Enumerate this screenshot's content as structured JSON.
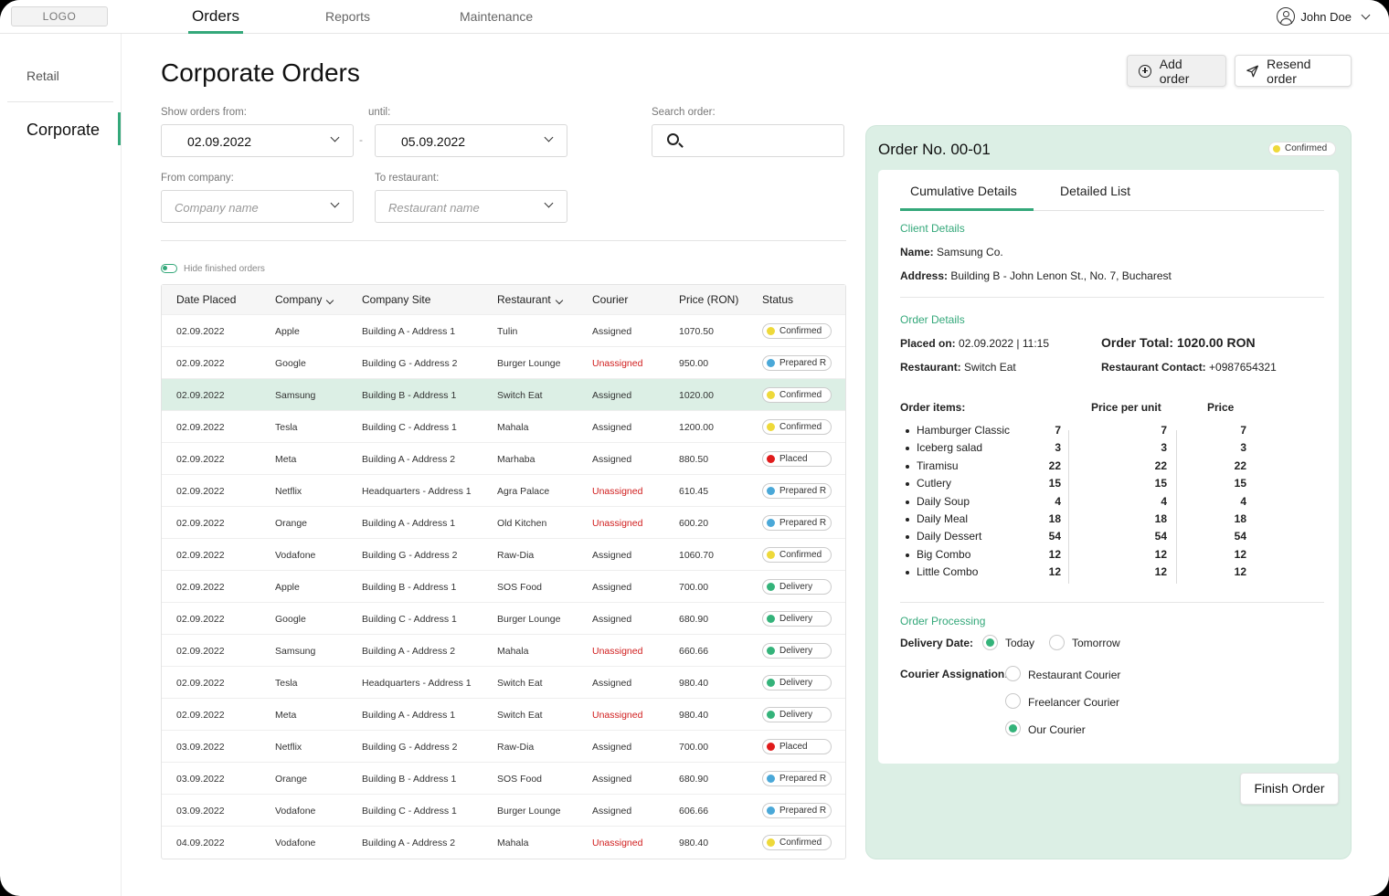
{
  "nav": {
    "logo": "LOGO",
    "tabs": [
      "Orders",
      "Reports",
      "Maintenance"
    ],
    "user_name": "John Doe"
  },
  "sidebar": {
    "items": [
      "Retail",
      "Corporate"
    ]
  },
  "page": {
    "title": "Corporate Orders",
    "add_order": "Add order",
    "resend_order": "Resend order"
  },
  "filters": {
    "from_label": "Show orders from:",
    "from_value": "02.09.2022",
    "until_label": "until:",
    "until_value": "05.09.2022",
    "dash": "-",
    "search_label": "Search order:",
    "company_label": "From company:",
    "company_placeholder": "Company name",
    "restaurant_label": "To restaurant:",
    "restaurant_placeholder": "Restaurant name",
    "hide_finished": "Hide finished orders"
  },
  "table": {
    "headers": [
      "Date Placed",
      "Company",
      "Company Site",
      "Restaurant",
      "Courier",
      "Price (RON)",
      "Status"
    ],
    "rows": [
      [
        "02.09.2022",
        "Apple",
        "Building A - Address 1",
        "Tulin",
        "Assigned",
        "1070.50",
        "Confirmed"
      ],
      [
        "02.09.2022",
        "Google",
        "Building G - Address 2",
        "Burger Lounge",
        "Unassigned",
        "950.00",
        "Prepared R"
      ],
      [
        "02.09.2022",
        "Samsung",
        "Building B - Address 1",
        "Switch Eat",
        "Assigned",
        "1020.00",
        "Confirmed"
      ],
      [
        "02.09.2022",
        "Tesla",
        "Building C - Address 1",
        "Mahala",
        "Assigned",
        "1200.00",
        "Confirmed"
      ],
      [
        "02.09.2022",
        "Meta",
        "Building A - Address 2",
        "Marhaba",
        "Assigned",
        "880.50",
        "Placed"
      ],
      [
        "02.09.2022",
        "Netflix",
        "Headquarters - Address 1",
        "Agra Palace",
        "Unassigned",
        "610.45",
        "Prepared R"
      ],
      [
        "02.09.2022",
        "Orange",
        "Building A - Address 1",
        "Old Kitchen",
        "Unassigned",
        "600.20",
        "Prepared R"
      ],
      [
        "02.09.2022",
        "Vodafone",
        "Building G - Address 2",
        "Raw-Dia",
        "Assigned",
        "1060.70",
        "Confirmed"
      ],
      [
        "02.09.2022",
        "Apple",
        "Building B - Address 1",
        "SOS Food",
        "Assigned",
        "700.00",
        "Delivery"
      ],
      [
        "02.09.2022",
        "Google",
        "Building C - Address 1",
        "Burger Lounge",
        "Assigned",
        "680.90",
        "Delivery"
      ],
      [
        "02.09.2022",
        "Samsung",
        "Building A - Address 2",
        "Mahala",
        "Unassigned",
        "660.66",
        "Delivery"
      ],
      [
        "02.09.2022",
        "Tesla",
        "Headquarters - Address 1",
        "Switch Eat",
        "Assigned",
        "980.40",
        "Delivery"
      ],
      [
        "02.09.2022",
        "Meta",
        "Building A - Address 1",
        "Switch Eat",
        "Unassigned",
        "980.40",
        "Delivery"
      ],
      [
        "03.09.2022",
        "Netflix",
        "Building G - Address 2",
        "Raw-Dia",
        "Assigned",
        "700.00",
        "Placed"
      ],
      [
        "03.09.2022",
        "Orange",
        "Building B - Address 1",
        "SOS Food",
        "Assigned",
        "680.90",
        "Prepared R"
      ],
      [
        "03.09.2022",
        "Vodafone",
        "Building C - Address 1",
        "Burger Lounge",
        "Assigned",
        "606.66",
        "Prepared R"
      ],
      [
        "04.09.2022",
        "Vodafone",
        "Building A - Address 2",
        "Mahala",
        "Unassigned",
        "980.40",
        "Confirmed"
      ]
    ],
    "status_colors": {
      "Confirmed": "#eed93a",
      "Prepared R": "#4aa8d8",
      "Placed": "#e01b1b",
      "Delivery": "#34b37a"
    }
  },
  "order": {
    "title": "Order No. 00-01",
    "status": "Confirmed",
    "tabs": [
      "Cumulative Details",
      "Detailed List"
    ],
    "client_title": "Client Details",
    "name_label": "Name:",
    "name_value": "Samsung Co.",
    "address_label": "Address:",
    "address_value": "Building B - John Lenon St., No. 7, Bucharest",
    "details_title": "Order Details",
    "placed_label": "Placed on:",
    "placed_value": "02.09.2022 | 11:15",
    "total_label": "Order Total:",
    "total_value": "1020.00 RON",
    "restaurant_label": "Restaurant:",
    "restaurant_value": "Switch Eat",
    "contact_label": "Restaurant Contact:",
    "contact_value": "+0987654321",
    "items_label": "Order items:",
    "ppu_label": "Price per unit",
    "price_label": "Price",
    "items": [
      {
        "name": "Hamburger Classic",
        "qty": "7",
        "ppu": "7",
        "price": "7"
      },
      {
        "name": "Iceberg salad",
        "qty": "3",
        "ppu": "3",
        "price": "3"
      },
      {
        "name": "Tiramisu",
        "qty": "22",
        "ppu": "22",
        "price": "22"
      },
      {
        "name": "Cutlery",
        "qty": "15",
        "ppu": "15",
        "price": "15"
      },
      {
        "name": "Daily Soup",
        "qty": "4",
        "ppu": "4",
        "price": "4"
      },
      {
        "name": "Daily Meal",
        "qty": "18",
        "ppu": "18",
        "price": "18"
      },
      {
        "name": "Daily Dessert",
        "qty": "54",
        "ppu": "54",
        "price": "54"
      },
      {
        "name": "Big Combo",
        "qty": "12",
        "ppu": "12",
        "price": "12"
      },
      {
        "name": "Little Combo",
        "qty": "12",
        "ppu": "12",
        "price": "12"
      }
    ],
    "processing_title": "Order Processing",
    "delivery_label": "Delivery Date:",
    "delivery_options": [
      "Today",
      "Tomorrow"
    ],
    "delivery_selected": "Today",
    "courier_label": "Courier Assignation:",
    "courier_options": [
      "Restaurant Courier",
      "Freelancer Courier",
      "Our Courier"
    ],
    "courier_selected": "Our Courier",
    "finish_label": "Finish Order"
  }
}
